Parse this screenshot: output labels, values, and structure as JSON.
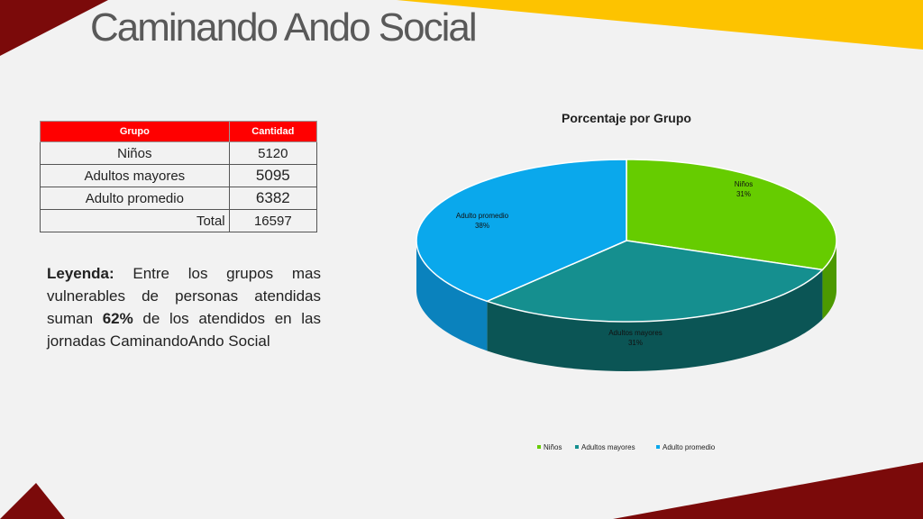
{
  "title": "Caminando Ando Social",
  "table": {
    "headers": [
      "Grupo",
      "Cantidad"
    ],
    "rows": [
      [
        "Niños",
        "5120"
      ],
      [
        "Adultos mayores",
        "5095"
      ],
      [
        "Adulto promedio",
        "6382"
      ]
    ],
    "total_label": "Total",
    "total_value": "16597"
  },
  "legend": {
    "label": "Leyenda:",
    "text1": " Entre los grupos mas vulnerables de personas atendidas suman ",
    "highlight": "62%",
    "text2": " de los atendidos en las jornadas CaminandoAndo Social"
  },
  "chart_data": {
    "type": "pie",
    "title": "Porcentaje por Grupo",
    "categories": [
      "Niños",
      "Adultos mayores",
      "Adulto promedio"
    ],
    "values": [
      5120,
      5095,
      6382
    ],
    "percent_labels": [
      "31%",
      "31%",
      "38%"
    ],
    "colors": [
      "#66cc00",
      "#158f8f",
      "#0aa8ec"
    ],
    "side_colors": [
      "#4c9900",
      "#0b5555",
      "#0a82bd"
    ],
    "legend_position": "bottom"
  }
}
